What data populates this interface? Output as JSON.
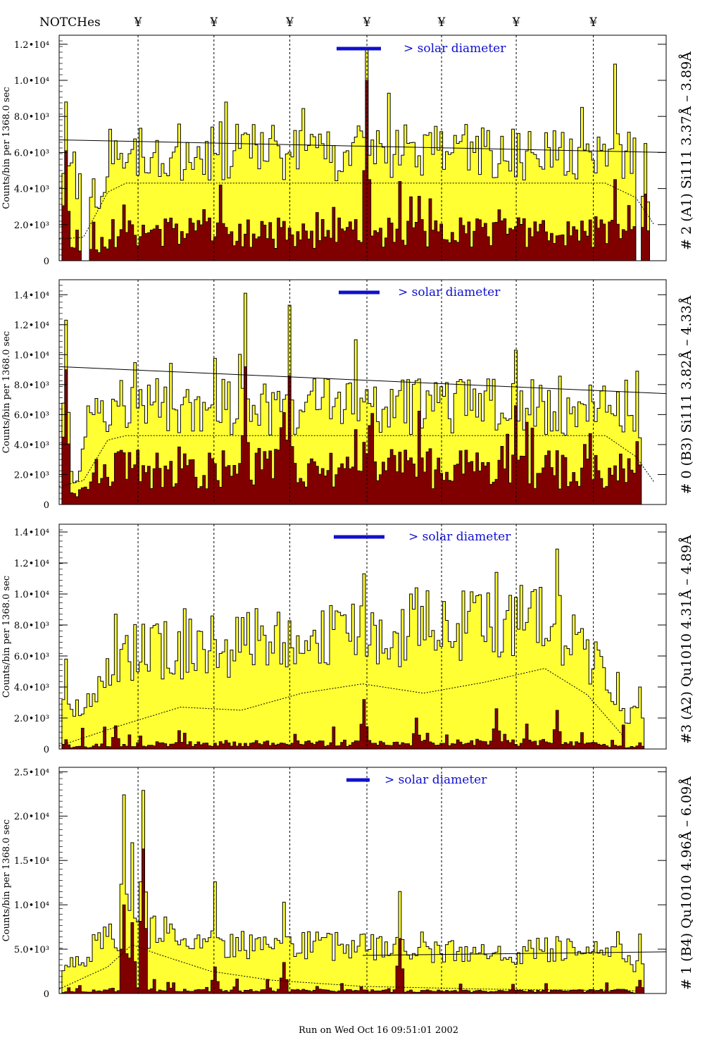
{
  "header": {
    "notches_label": "NOTCHes",
    "notch_symbol": "¥"
  },
  "footer": {
    "run_label": "Run on Wed Oct 16 09:51:01 2002"
  },
  "colors": {
    "total": "#ffff33",
    "sub": "#800000",
    "accent": "#1010cc",
    "line": "#000000"
  },
  "chart_data": [
    {
      "type": "histogram",
      "title": "",
      "ylabel": "Counts/bin per   1368.0 sec",
      "right_label": "# 2 (A1) Si111  3.37Å – 3.89Å",
      "diameter_label": "> solar diameter",
      "ylim": [
        0,
        12500
      ],
      "yticks": [
        {
          "v": 0,
          "label": "0"
        },
        {
          "v": 2000,
          "label": "2.0•10³"
        },
        {
          "v": 4000,
          "label": "4.0•10³"
        },
        {
          "v": 6000,
          "label": "6.0•10³"
        },
        {
          "v": 8000,
          "label": "8.0•10³"
        },
        {
          "v": 10000,
          "label": "1.0•10⁴"
        },
        {
          "v": 12000,
          "label": "1.2•10⁴"
        }
      ],
      "notches_x": [
        0.13,
        0.255,
        0.38,
        0.507,
        0.63,
        0.753,
        0.88
      ],
      "fit_line": [
        [
          0.0,
          6700
        ],
        [
          1.0,
          6000
        ]
      ],
      "smooth_line": [
        [
          0.0,
          1200
        ],
        [
          0.04,
          1300
        ],
        [
          0.08,
          3800
        ],
        [
          0.11,
          4300
        ],
        [
          0.3,
          4300
        ],
        [
          0.6,
          4300
        ],
        [
          0.9,
          4300
        ],
        [
          0.95,
          3500
        ],
        [
          0.98,
          2000
        ]
      ],
      "seed": 11,
      "base": 6000,
      "noise": 1600,
      "sub_base": 1700,
      "sub_noise": 1500,
      "gaps": [
        [
          0.0,
          0.01
        ],
        [
          0.035,
          0.05
        ],
        [
          0.95,
          1.0
        ]
      ],
      "edge_peaks": [
        [
          0.012,
          8800,
          6100
        ],
        [
          0.968,
          6500,
          3700
        ]
      ],
      "spikes": [
        [
          0.507,
          11700,
          10000
        ],
        [
          0.915,
          10900,
          4500
        ],
        [
          0.86,
          8500,
          2200
        ],
        [
          0.265,
          7700,
          4200
        ]
      ],
      "envelope": [
        [
          0.0,
          1.0
        ],
        [
          0.06,
          0.5
        ],
        [
          0.09,
          1.0
        ],
        [
          1.0,
          1.0
        ]
      ]
    },
    {
      "type": "histogram",
      "title": "",
      "ylabel": "Counts/bin per   1368.0 sec",
      "right_label": "# 0 (B3) Si111  3.82Å – 4.33Å",
      "diameter_label": "> solar diameter",
      "ylim": [
        0,
        15000
      ],
      "yticks": [
        {
          "v": 0,
          "label": "0"
        },
        {
          "v": 2000,
          "label": "2.0•10³"
        },
        {
          "v": 4000,
          "label": "4.0•10³"
        },
        {
          "v": 6000,
          "label": "6.0•10³"
        },
        {
          "v": 8000,
          "label": "8.0•10³"
        },
        {
          "v": 10000,
          "label": "1.0•10⁴"
        },
        {
          "v": 12000,
          "label": "1.2•10⁴"
        },
        {
          "v": 14000,
          "label": "1.4•10⁴"
        }
      ],
      "notches_x": [
        0.13,
        0.255,
        0.38,
        0.507,
        0.63,
        0.753,
        0.88
      ],
      "fit_line": [
        [
          0.0,
          9200
        ],
        [
          1.0,
          7400
        ]
      ],
      "smooth_line": [
        [
          0.0,
          1200
        ],
        [
          0.04,
          1600
        ],
        [
          0.08,
          4300
        ],
        [
          0.11,
          4600
        ],
        [
          0.5,
          4600
        ],
        [
          0.9,
          4600
        ],
        [
          0.95,
          3200
        ],
        [
          0.98,
          1500
        ]
      ],
      "seed": 22,
      "base": 6500,
      "noise": 1900,
      "sub_base": 2600,
      "sub_noise": 2000,
      "gaps": [
        [
          0.0,
          0.005
        ],
        [
          0.96,
          1.0
        ]
      ],
      "edge_peaks": [
        [
          0.012,
          12300,
          9000
        ],
        [
          0.95,
          8900,
          4200
        ]
      ],
      "spikes": [
        [
          0.305,
          14100,
          9200
        ],
        [
          0.38,
          13300,
          8600
        ],
        [
          0.753,
          10300,
          6600
        ],
        [
          0.49,
          11000,
          5000
        ]
      ],
      "envelope": [
        [
          0.0,
          1.0
        ],
        [
          0.015,
          0.25
        ],
        [
          0.03,
          0.3
        ],
        [
          0.06,
          1.0
        ],
        [
          0.94,
          1.0
        ],
        [
          0.95,
          0.15
        ],
        [
          0.965,
          1.0
        ]
      ]
    },
    {
      "type": "histogram",
      "title": "",
      "ylabel": "Counts/bin per   1368.0 sec",
      "right_label": "#3 (A2) Qu1010  4.31Å – 4.89Å",
      "diameter_label": "> solar diameter",
      "ylim": [
        0,
        14500
      ],
      "yticks": [
        {
          "v": 0,
          "label": "0"
        },
        {
          "v": 2000,
          "label": "2.0•10³"
        },
        {
          "v": 4000,
          "label": "4.0•10³"
        },
        {
          "v": 6000,
          "label": "6.0•10³"
        },
        {
          "v": 8000,
          "label": "8.0•10³"
        },
        {
          "v": 10000,
          "label": "1.0•10⁴"
        },
        {
          "v": 12000,
          "label": "1.2•10⁴"
        },
        {
          "v": 14000,
          "label": "1.4•10⁴"
        }
      ],
      "notches_x": [
        0.13,
        0.255,
        0.38,
        0.507,
        0.63,
        0.753,
        0.88
      ],
      "fit_line": [],
      "smooth_line": [
        [
          0.0,
          200
        ],
        [
          0.1,
          1500
        ],
        [
          0.2,
          2700
        ],
        [
          0.3,
          2500
        ],
        [
          0.4,
          3600
        ],
        [
          0.5,
          4200
        ],
        [
          0.6,
          3600
        ],
        [
          0.7,
          4300
        ],
        [
          0.8,
          5200
        ],
        [
          0.87,
          3500
        ],
        [
          0.93,
          800
        ]
      ],
      "seed": 33,
      "base": 6200,
      "noise": 2000,
      "sub_base": 350,
      "sub_noise": 900,
      "gaps": [
        [
          0.0,
          0.005
        ],
        [
          0.96,
          1.0
        ]
      ],
      "edge_peaks": [
        [
          0.012,
          5800,
          600
        ],
        [
          0.955,
          4000,
          400
        ]
      ],
      "spikes": [
        [
          0.5,
          11300,
          3200
        ],
        [
          0.82,
          12900,
          2500
        ],
        [
          0.72,
          11400,
          2600
        ],
        [
          0.59,
          10400,
          2000
        ],
        [
          0.093,
          8700,
          1500
        ]
      ],
      "envelope": [
        [
          0.0,
          0.4
        ],
        [
          0.02,
          0.35
        ],
        [
          0.06,
          0.6
        ],
        [
          0.12,
          1.0
        ],
        [
          0.4,
          1.15
        ],
        [
          0.8,
          1.35
        ],
        [
          0.88,
          0.9
        ],
        [
          0.93,
          0.35
        ],
        [
          1.0,
          0.35
        ]
      ]
    },
    {
      "type": "histogram",
      "title": "",
      "ylabel": "Counts/bin per   1368.0 sec",
      "right_label": "# 1 (B4) Qu1010 4.96Å – 6.09Å",
      "diameter_label": "> solar diameter",
      "ylim": [
        0,
        25500
      ],
      "yticks": [
        {
          "v": 0,
          "label": "0"
        },
        {
          "v": 5000,
          "label": "5.0•10³"
        },
        {
          "v": 10000,
          "label": "1.0•10⁴"
        },
        {
          "v": 15000,
          "label": "1.5•10⁴"
        },
        {
          "v": 20000,
          "label": "2.0•10⁴"
        },
        {
          "v": 25000,
          "label": "2.5•10⁴"
        }
      ],
      "notches_x": [
        0.13,
        0.255,
        0.38,
        0.507,
        0.63,
        0.753,
        0.88
      ],
      "fit_line": [
        [
          0.5,
          4300
        ],
        [
          1.0,
          4700
        ]
      ],
      "smooth_line": [
        [
          0.0,
          500
        ],
        [
          0.08,
          3000
        ],
        [
          0.12,
          5500
        ],
        [
          0.16,
          4500
        ],
        [
          0.25,
          2500
        ],
        [
          0.35,
          1500
        ],
        [
          0.5,
          800
        ],
        [
          0.7,
          500
        ],
        [
          0.95,
          300
        ]
      ],
      "seed": 44,
      "base": 6200,
      "noise": 1900,
      "sub_base": 400,
      "sub_noise": 800,
      "gaps": [
        [
          0.0,
          0.005
        ],
        [
          0.96,
          1.0
        ]
      ],
      "edge_peaks": [
        [
          0.955,
          6700,
          1500
        ]
      ],
      "spikes": [
        [
          0.105,
          22400,
          10000
        ],
        [
          0.14,
          22900,
          16300
        ],
        [
          0.12,
          17000,
          8000
        ],
        [
          0.255,
          12600,
          3000
        ],
        [
          0.56,
          11500,
          6200
        ],
        [
          0.37,
          10300,
          3500
        ]
      ],
      "envelope": [
        [
          0.0,
          0.3
        ],
        [
          0.03,
          0.6
        ],
        [
          0.09,
          1.1
        ],
        [
          0.16,
          1.2
        ],
        [
          0.22,
          0.9
        ],
        [
          0.4,
          0.9
        ],
        [
          0.7,
          0.7
        ],
        [
          0.93,
          0.9
        ],
        [
          0.95,
          0.3
        ],
        [
          1.0,
          0.3
        ]
      ]
    }
  ]
}
